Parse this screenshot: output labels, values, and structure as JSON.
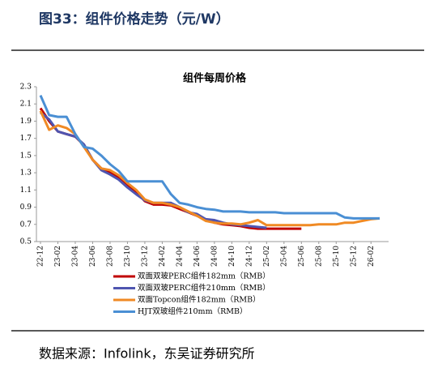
{
  "caption": "图33：组件价格走势（元/W）",
  "source": "数据来源：Infolink，东吴证券研究所",
  "chart_data": {
    "type": "line",
    "title": "组件每周价格",
    "categories": [
      "22-12",
      null,
      "23-02",
      null,
      "23-04",
      null,
      "23-06",
      null,
      "23-08",
      null,
      "23-10",
      null,
      "23-12",
      null,
      "24-02",
      null,
      "24-04",
      null,
      "24-06",
      null,
      "24-08",
      null,
      "24-10",
      null,
      "24-12",
      null,
      "25-02",
      null,
      "25-04",
      null,
      "25-06",
      null,
      "25-08",
      null,
      "25-10",
      null,
      "25-12",
      null,
      "26-02",
      null
    ],
    "series": [
      {
        "name": "双面双玻PERC组件182mm（RMB）",
        "color": "#c00000",
        "values": [
          2.05,
          1.9,
          1.78,
          1.75,
          1.72,
          1.62,
          1.45,
          1.35,
          1.3,
          1.25,
          1.15,
          1.08,
          0.97,
          0.93,
          0.93,
          0.92,
          0.88,
          0.84,
          0.8,
          0.76,
          0.72,
          0.7,
          0.69,
          0.68,
          0.66,
          0.65,
          0.65,
          0.65,
          0.65,
          0.65,
          0.65,
          null,
          null,
          null,
          null,
          null,
          null,
          null,
          null,
          null
        ]
      },
      {
        "name": "双面双玻PERC组件210mm（RMB）",
        "color": "#4f55b0",
        "values": [
          2.0,
          1.92,
          1.78,
          1.75,
          1.72,
          1.63,
          1.45,
          1.33,
          1.28,
          1.22,
          1.13,
          1.05,
          0.98,
          0.95,
          0.95,
          0.95,
          0.9,
          0.84,
          0.82,
          0.76,
          0.75,
          0.72,
          0.7,
          0.69,
          0.68,
          0.67,
          0.66,
          null,
          null,
          null,
          null,
          null,
          null,
          null,
          null,
          null,
          null,
          null,
          null,
          null
        ]
      },
      {
        "name": "双面Topcon组件182mm（RMB）",
        "color": "#f08a24",
        "values": [
          2.02,
          1.8,
          1.85,
          1.82,
          1.75,
          1.6,
          1.45,
          1.35,
          1.33,
          1.27,
          1.18,
          1.1,
          0.99,
          0.95,
          0.95,
          0.93,
          0.9,
          0.85,
          0.8,
          0.74,
          0.72,
          0.71,
          0.71,
          0.7,
          0.72,
          0.75,
          0.69,
          0.69,
          0.69,
          0.69,
          0.69,
          0.69,
          0.7,
          0.7,
          0.7,
          0.72,
          0.72,
          0.74,
          0.76,
          0.77
        ]
      },
      {
        "name": "HJT双玻组件210mm（RMB）",
        "color": "#4a8fd4",
        "values": [
          2.2,
          1.97,
          1.95,
          1.95,
          1.75,
          1.6,
          1.58,
          1.5,
          1.4,
          1.32,
          1.2,
          1.2,
          1.2,
          1.2,
          1.2,
          1.05,
          0.95,
          0.93,
          0.9,
          0.88,
          0.87,
          0.85,
          0.85,
          0.85,
          0.84,
          0.84,
          0.84,
          0.84,
          0.83,
          0.83,
          0.83,
          0.83,
          0.83,
          0.83,
          0.83,
          0.78,
          0.77,
          0.77,
          0.77,
          0.77
        ]
      }
    ],
    "ylim": [
      0.5,
      2.3
    ],
    "yticks": [
      0.5,
      0.7,
      0.9,
      1.1,
      1.3,
      1.5,
      1.7,
      1.9,
      2.1,
      2.3
    ]
  }
}
